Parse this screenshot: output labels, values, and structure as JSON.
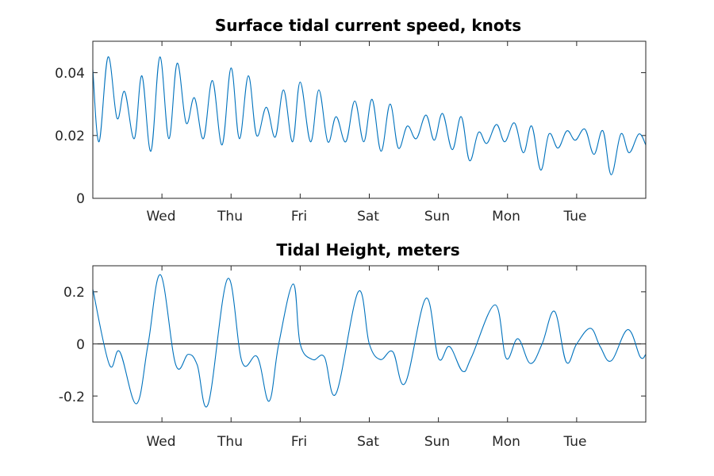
{
  "chart_data": [
    {
      "type": "line",
      "title": "Surface tidal current speed, knots",
      "xlabel": "",
      "ylabel": "",
      "x_ticks": [
        "Wed",
        "Thu",
        "Fri",
        "Sat",
        "Sun",
        "Mon",
        "Tue"
      ],
      "xlim": [
        0,
        8
      ],
      "ylim": [
        0,
        0.05
      ],
      "y_ticks": [
        {
          "value": 0,
          "label": "0"
        },
        {
          "value": 0.02,
          "label": "0.02"
        },
        {
          "value": 0.04,
          "label": "0.04"
        }
      ],
      "grid": false,
      "series": [
        {
          "color": "#0072bd",
          "x": [
            0.0,
            0.09,
            0.22,
            0.35,
            0.46,
            0.6,
            0.71,
            0.84,
            0.97,
            1.1,
            1.22,
            1.35,
            1.47,
            1.6,
            1.73,
            1.87,
            2.0,
            2.12,
            2.25,
            2.37,
            2.51,
            2.64,
            2.76,
            2.89,
            3.0,
            3.15,
            3.27,
            3.4,
            3.52,
            3.66,
            3.79,
            3.92,
            4.04,
            4.17,
            4.3,
            4.42,
            4.55,
            4.68,
            4.82,
            4.94,
            5.06,
            5.2,
            5.33,
            5.45,
            5.58,
            5.7,
            5.84,
            5.96,
            6.1,
            6.23,
            6.35,
            6.48,
            6.6,
            6.73,
            6.86,
            6.98,
            7.12,
            7.25,
            7.38,
            7.5,
            7.64,
            7.76,
            7.9,
            8.0
          ],
          "y": [
            0.041,
            0.018,
            0.045,
            0.0255,
            0.034,
            0.019,
            0.039,
            0.015,
            0.045,
            0.019,
            0.043,
            0.024,
            0.032,
            0.019,
            0.0375,
            0.017,
            0.0415,
            0.019,
            0.039,
            0.02,
            0.029,
            0.0195,
            0.0345,
            0.018,
            0.037,
            0.018,
            0.0345,
            0.018,
            0.026,
            0.018,
            0.031,
            0.018,
            0.0315,
            0.015,
            0.03,
            0.016,
            0.023,
            0.019,
            0.0265,
            0.0185,
            0.027,
            0.0155,
            0.026,
            0.012,
            0.021,
            0.0175,
            0.0235,
            0.018,
            0.024,
            0.0145,
            0.023,
            0.009,
            0.0205,
            0.016,
            0.0215,
            0.0185,
            0.022,
            0.014,
            0.0215,
            0.0075,
            0.0205,
            0.0145,
            0.0205,
            0.017
          ]
        }
      ]
    },
    {
      "type": "line",
      "title": "Tidal Height, meters",
      "xlabel": "",
      "ylabel": "",
      "x_ticks": [
        "Wed",
        "Thu",
        "Fri",
        "Sat",
        "Sun",
        "Mon",
        "Tue"
      ],
      "xlim": [
        0,
        8
      ],
      "ylim": [
        -0.3,
        0.3
      ],
      "y_ticks": [
        {
          "value": -0.2,
          "label": "-0.2"
        },
        {
          "value": 0,
          "label": "0"
        },
        {
          "value": 0.2,
          "label": "0.2"
        }
      ],
      "zero_line": true,
      "grid": false,
      "series": [
        {
          "color": "#0072bd",
          "x": [
            0.0,
            0.24,
            0.39,
            0.63,
            0.8,
            0.98,
            1.2,
            1.38,
            1.51,
            1.67,
            1.95,
            2.16,
            2.38,
            2.55,
            2.69,
            2.9,
            3.0,
            3.18,
            3.35,
            3.52,
            3.84,
            4.0,
            4.16,
            4.34,
            4.52,
            4.82,
            5.0,
            5.16,
            5.35,
            5.48,
            5.82,
            5.98,
            6.15,
            6.33,
            6.5,
            6.68,
            6.85,
            7.0,
            7.2,
            7.34,
            7.5,
            7.74,
            7.92,
            8.0
          ],
          "y": [
            0.21,
            -0.08,
            -0.03,
            -0.23,
            0.0,
            0.265,
            -0.08,
            -0.04,
            -0.08,
            -0.23,
            0.25,
            -0.07,
            -0.05,
            -0.22,
            0.0,
            0.23,
            0.0,
            -0.06,
            -0.05,
            -0.19,
            0.2,
            0.0,
            -0.06,
            -0.03,
            -0.15,
            0.175,
            -0.055,
            -0.01,
            -0.105,
            -0.05,
            0.15,
            -0.055,
            0.02,
            -0.075,
            0.0,
            0.125,
            -0.07,
            0.0,
            0.06,
            -0.01,
            -0.065,
            0.055,
            -0.05,
            -0.04
          ]
        }
      ]
    }
  ]
}
